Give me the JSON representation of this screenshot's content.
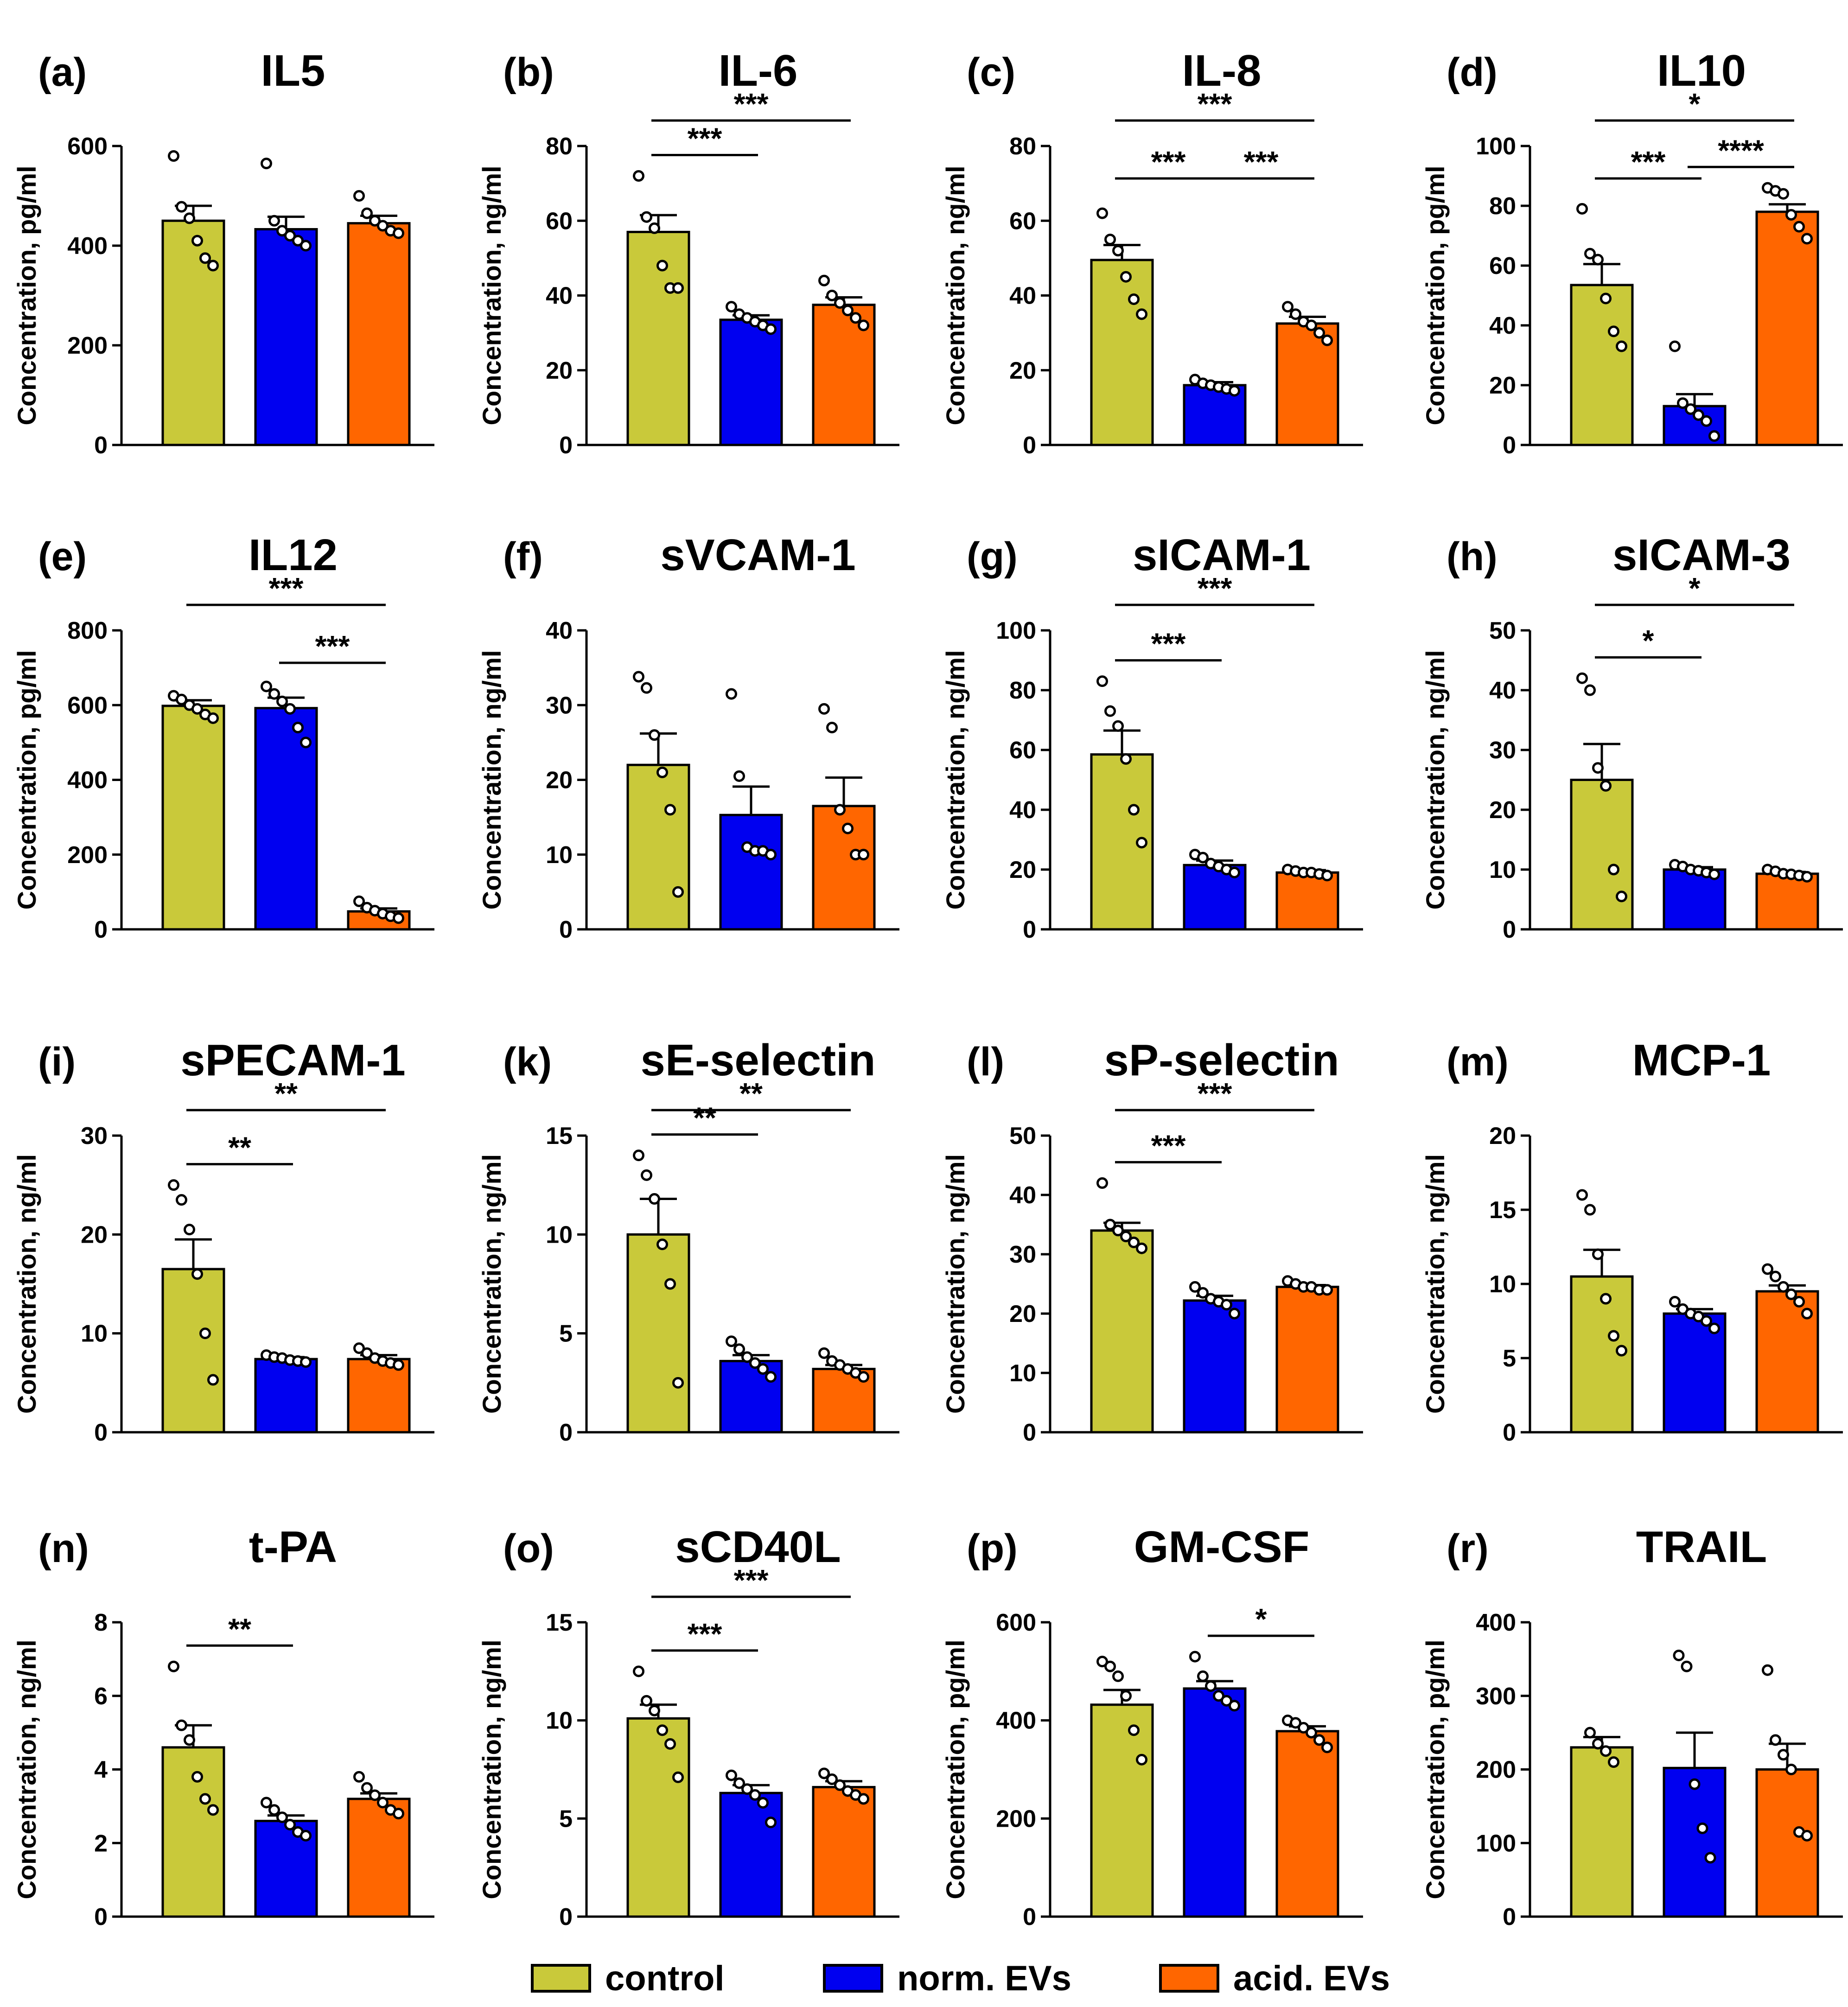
{
  "figure": {
    "groups": [
      "control",
      "norm. EVs",
      "acid. EVs"
    ],
    "colors": {
      "control": "#c9c93a",
      "norm. EVs": "#0000f0",
      "acid. EVs": "#ff6600"
    }
  },
  "legend": {
    "items": [
      {
        "label": "control",
        "color": "#c9c93a"
      },
      {
        "label": "norm. EVs",
        "color": "#0000f0"
      },
      {
        "label": "acid. EVs",
        "color": "#ff6600"
      }
    ]
  },
  "chart_data": [
    {
      "panel": "(a)",
      "title": "IL5",
      "type": "bar",
      "ylabel": "Concentration, pg/ml",
      "ylim": [
        0,
        600
      ],
      "yticks": [
        0,
        200,
        400,
        600
      ],
      "values": [
        450,
        433,
        445
      ],
      "sem": [
        30,
        25,
        15
      ],
      "points": [
        [
          580,
          478,
          455,
          410,
          375,
          360
        ],
        [
          565,
          450,
          430,
          420,
          410,
          400
        ],
        [
          500,
          465,
          450,
          440,
          430,
          425
        ]
      ],
      "significance": []
    },
    {
      "panel": "(b)",
      "title": "IL-6",
      "type": "bar",
      "ylabel": "Concentration, ng/ml",
      "ylim": [
        0,
        80
      ],
      "yticks": [
        0,
        20,
        40,
        60,
        80
      ],
      "values": [
        57,
        33.5,
        37.5
      ],
      "sem": [
        4.5,
        1.2,
        2
      ],
      "points": [
        [
          72,
          61,
          58,
          48,
          42,
          42
        ],
        [
          37,
          35,
          34,
          33,
          32,
          31
        ],
        [
          44,
          40,
          38,
          36,
          34,
          32
        ]
      ],
      "significance": [
        {
          "from": 0,
          "to": 1,
          "label": "***"
        },
        {
          "from": 0,
          "to": 2,
          "label": "***"
        }
      ]
    },
    {
      "panel": "(c)",
      "title": "IL-8",
      "type": "bar",
      "ylabel": "Concentration, ng/ml",
      "ylim": [
        0,
        80
      ],
      "yticks": [
        0,
        20,
        40,
        60,
        80
      ],
      "values": [
        49.5,
        16,
        32.5
      ],
      "sem": [
        4,
        0.8,
        1.8
      ],
      "points": [
        [
          62,
          55,
          52,
          45,
          39,
          35
        ],
        [
          17.5,
          16.5,
          16,
          15.5,
          15,
          14.5
        ],
        [
          37,
          35,
          33,
          32,
          30,
          28
        ]
      ],
      "significance": [
        {
          "from": 0,
          "to": 1,
          "label": "***"
        },
        {
          "from": 0,
          "to": 2,
          "label": "***"
        },
        {
          "from": 1,
          "to": 2,
          "label": "***"
        }
      ]
    },
    {
      "panel": "(d)",
      "title": "IL10",
      "type": "bar",
      "ylabel": "Concentration, pg/ml",
      "ylim": [
        0,
        100
      ],
      "yticks": [
        0,
        20,
        40,
        60,
        80,
        100
      ],
      "values": [
        53.5,
        13,
        78
      ],
      "sem": [
        7,
        4,
        2.5
      ],
      "points": [
        [
          79,
          64,
          62,
          49,
          38,
          33
        ],
        [
          33,
          14,
          12,
          10,
          8,
          3
        ],
        [
          86,
          85,
          84,
          77,
          73,
          69
        ]
      ],
      "significance": [
        {
          "from": 0,
          "to": 1,
          "label": "***"
        },
        {
          "from": 1,
          "to": 2,
          "label": "****"
        },
        {
          "from": 0,
          "to": 2,
          "label": "*"
        }
      ]
    },
    {
      "panel": "(e)",
      "title": "IL12",
      "type": "bar",
      "ylabel": "Concentration, pg/ml",
      "ylim": [
        0,
        800
      ],
      "yticks": [
        0,
        200,
        400,
        600,
        800
      ],
      "values": [
        598,
        592,
        48
      ],
      "sem": [
        15,
        28,
        8
      ],
      "points": [
        [
          625,
          615,
          600,
          590,
          575,
          565
        ],
        [
          650,
          630,
          610,
          590,
          540,
          500
        ],
        [
          75,
          58,
          50,
          42,
          35,
          30
        ]
      ],
      "significance": [
        {
          "from": 0,
          "to": 2,
          "label": "***"
        },
        {
          "from": 1,
          "to": 2,
          "label": "***"
        }
      ]
    },
    {
      "panel": "(f)",
      "title": "sVCAM-1",
      "type": "bar",
      "ylabel": "Concentration, ng/ml",
      "ylim": [
        0,
        40
      ],
      "yticks": [
        0,
        10,
        20,
        30,
        40
      ],
      "values": [
        22,
        15.3,
        16.5
      ],
      "sem": [
        4.2,
        3.8,
        3.8
      ],
      "points": [
        [
          33.8,
          32.3,
          26,
          21,
          16,
          5
        ],
        [
          31.5,
          20.5,
          11,
          10.5,
          10.5,
          10
        ],
        [
          29.5,
          27,
          16,
          13.5,
          10,
          10
        ]
      ],
      "significance": []
    },
    {
      "panel": "(g)",
      "title": "sICAM-1",
      "type": "bar",
      "ylabel": "Concentration, ng/ml",
      "ylim": [
        0,
        100
      ],
      "yticks": [
        0,
        20,
        40,
        60,
        80,
        100
      ],
      "values": [
        58.5,
        21.5,
        19
      ],
      "sem": [
        8,
        1.5,
        0.8
      ],
      "points": [
        [
          83,
          73,
          68,
          57,
          40,
          29
        ],
        [
          25,
          24,
          22,
          21,
          20,
          19
        ],
        [
          20,
          19.5,
          19,
          19,
          18.5,
          18
        ]
      ],
      "significance": [
        {
          "from": 0,
          "to": 1,
          "label": "***"
        },
        {
          "from": 0,
          "to": 2,
          "label": "***"
        }
      ]
    },
    {
      "panel": "(h)",
      "title": "sICAM-3",
      "type": "bar",
      "ylabel": "Concentration, ng/ml",
      "ylim": [
        0,
        50
      ],
      "yticks": [
        0,
        10,
        20,
        30,
        40,
        50
      ],
      "values": [
        25,
        10,
        9.3
      ],
      "sem": [
        6,
        0.4,
        0.3
      ],
      "points": [
        [
          42,
          40,
          27,
          24,
          10,
          5.5
        ],
        [
          10.8,
          10.5,
          10,
          9.8,
          9.5,
          9.2
        ],
        [
          10,
          9.7,
          9.3,
          9.2,
          9,
          8.8
        ]
      ],
      "significance": [
        {
          "from": 0,
          "to": 1,
          "label": "*"
        },
        {
          "from": 0,
          "to": 2,
          "label": "*"
        }
      ]
    },
    {
      "panel": "(i)",
      "title": "sPECAM-1",
      "type": "bar",
      "ylabel": "Concentration, ng/ml",
      "ylim": [
        0,
        30
      ],
      "yticks": [
        0,
        10,
        20,
        30
      ],
      "values": [
        16.5,
        7.4,
        7.4
      ],
      "sem": [
        3,
        0.2,
        0.4
      ],
      "points": [
        [
          25,
          23.5,
          20.5,
          16,
          10,
          5.3
        ],
        [
          7.8,
          7.6,
          7.5,
          7.3,
          7.2,
          7.1
        ],
        [
          8.5,
          8,
          7.5,
          7.2,
          7,
          6.8
        ]
      ],
      "significance": [
        {
          "from": 0,
          "to": 1,
          "label": "**"
        },
        {
          "from": 0,
          "to": 2,
          "label": "**"
        }
      ]
    },
    {
      "panel": "(k)",
      "title": "sE-selectin",
      "type": "bar",
      "ylabel": "Concentration, ng/ml",
      "ylim": [
        0,
        15
      ],
      "yticks": [
        0,
        5,
        10,
        15
      ],
      "values": [
        10,
        3.6,
        3.2
      ],
      "sem": [
        1.8,
        0.3,
        0.2
      ],
      "points": [
        [
          14,
          13,
          11.8,
          9.5,
          7.5,
          2.5
        ],
        [
          4.6,
          4.2,
          3.8,
          3.5,
          3.2,
          2.8
        ],
        [
          4,
          3.6,
          3.4,
          3.2,
          3,
          2.8
        ]
      ],
      "significance": [
        {
          "from": 0,
          "to": 1,
          "label": "**"
        },
        {
          "from": 0,
          "to": 2,
          "label": "**"
        }
      ]
    },
    {
      "panel": "(l)",
      "title": "sP-selectin",
      "type": "bar",
      "ylabel": "Concentration, ng/ml",
      "ylim": [
        0,
        50
      ],
      "yticks": [
        0,
        10,
        20,
        30,
        40,
        50
      ],
      "values": [
        34,
        22.2,
        24.5
      ],
      "sem": [
        1.3,
        0.8,
        0.3
      ],
      "points": [
        [
          42,
          35,
          34,
          33,
          32,
          31
        ],
        [
          24.5,
          23.5,
          22.5,
          22,
          21.5,
          20
        ],
        [
          25.5,
          25,
          24.5,
          24.5,
          24,
          24
        ]
      ],
      "significance": [
        {
          "from": 0,
          "to": 1,
          "label": "***"
        },
        {
          "from": 0,
          "to": 2,
          "label": "***"
        }
      ]
    },
    {
      "panel": "(m)",
      "title": "MCP-1",
      "type": "bar",
      "ylabel": "Concentration, ng/ml",
      "ylim": [
        0,
        20
      ],
      "yticks": [
        0,
        5,
        10,
        15,
        20
      ],
      "values": [
        10.5,
        8,
        9.5
      ],
      "sem": [
        1.8,
        0.3,
        0.4
      ],
      "points": [
        [
          16,
          15,
          12,
          9,
          6.5,
          5.5
        ],
        [
          8.8,
          8.3,
          8,
          7.8,
          7.5,
          7
        ],
        [
          11,
          10.5,
          9.8,
          9.3,
          8.8,
          8
        ]
      ],
      "significance": []
    },
    {
      "panel": "(n)",
      "title": "t-PA",
      "type": "bar",
      "ylabel": "Concentration, ng/ml",
      "ylim": [
        0,
        8
      ],
      "yticks": [
        0,
        2,
        4,
        6,
        8
      ],
      "values": [
        4.6,
        2.6,
        3.2
      ],
      "sem": [
        0.6,
        0.15,
        0.15
      ],
      "points": [
        [
          6.8,
          5.2,
          4.8,
          3.8,
          3.2,
          2.9
        ],
        [
          3.1,
          2.9,
          2.7,
          2.5,
          2.3,
          2.2
        ],
        [
          3.8,
          3.5,
          3.3,
          3.1,
          2.9,
          2.8
        ]
      ],
      "significance": [
        {
          "from": 0,
          "to": 1,
          "label": "**"
        }
      ]
    },
    {
      "panel": "(o)",
      "title": "sCD40L",
      "type": "bar",
      "ylabel": "Concentration, ng/ml",
      "ylim": [
        0,
        15
      ],
      "yticks": [
        0,
        5,
        10,
        15
      ],
      "values": [
        10.1,
        6.3,
        6.6
      ],
      "sem": [
        0.7,
        0.4,
        0.3
      ],
      "points": [
        [
          12.5,
          11,
          10.5,
          9.5,
          8.8,
          7.1
        ],
        [
          7.2,
          6.8,
          6.5,
          6.2,
          5.8,
          4.8
        ],
        [
          7.3,
          7,
          6.7,
          6.4,
          6.2,
          6
        ]
      ],
      "significance": [
        {
          "from": 0,
          "to": 1,
          "label": "***"
        },
        {
          "from": 0,
          "to": 2,
          "label": "***"
        }
      ]
    },
    {
      "panel": "(p)",
      "title": "GM-CSF",
      "type": "bar",
      "ylabel": "Concentration, pg/ml",
      "ylim": [
        0,
        600
      ],
      "yticks": [
        0,
        200,
        400,
        600
      ],
      "values": [
        432,
        465,
        378
      ],
      "sem": [
        30,
        15,
        10
      ],
      "points": [
        [
          520,
          510,
          490,
          450,
          380,
          320
        ],
        [
          530,
          490,
          470,
          450,
          440,
          430
        ],
        [
          400,
          395,
          385,
          375,
          360,
          345
        ]
      ],
      "significance": [
        {
          "from": 1,
          "to": 2,
          "label": "*"
        }
      ]
    },
    {
      "panel": "(r)",
      "title": "TRAIL",
      "type": "bar",
      "ylabel": "Concentration, pg/ml",
      "ylim": [
        0,
        400
      ],
      "yticks": [
        0,
        100,
        200,
        300,
        400
      ],
      "values": [
        230,
        202,
        200
      ],
      "sem": [
        14,
        48,
        35
      ],
      "points": [
        [
          250,
          235,
          225,
          210
        ],
        [
          355,
          340,
          180,
          120,
          80
        ],
        [
          335,
          240,
          220,
          200,
          115,
          110
        ]
      ],
      "significance": []
    }
  ]
}
